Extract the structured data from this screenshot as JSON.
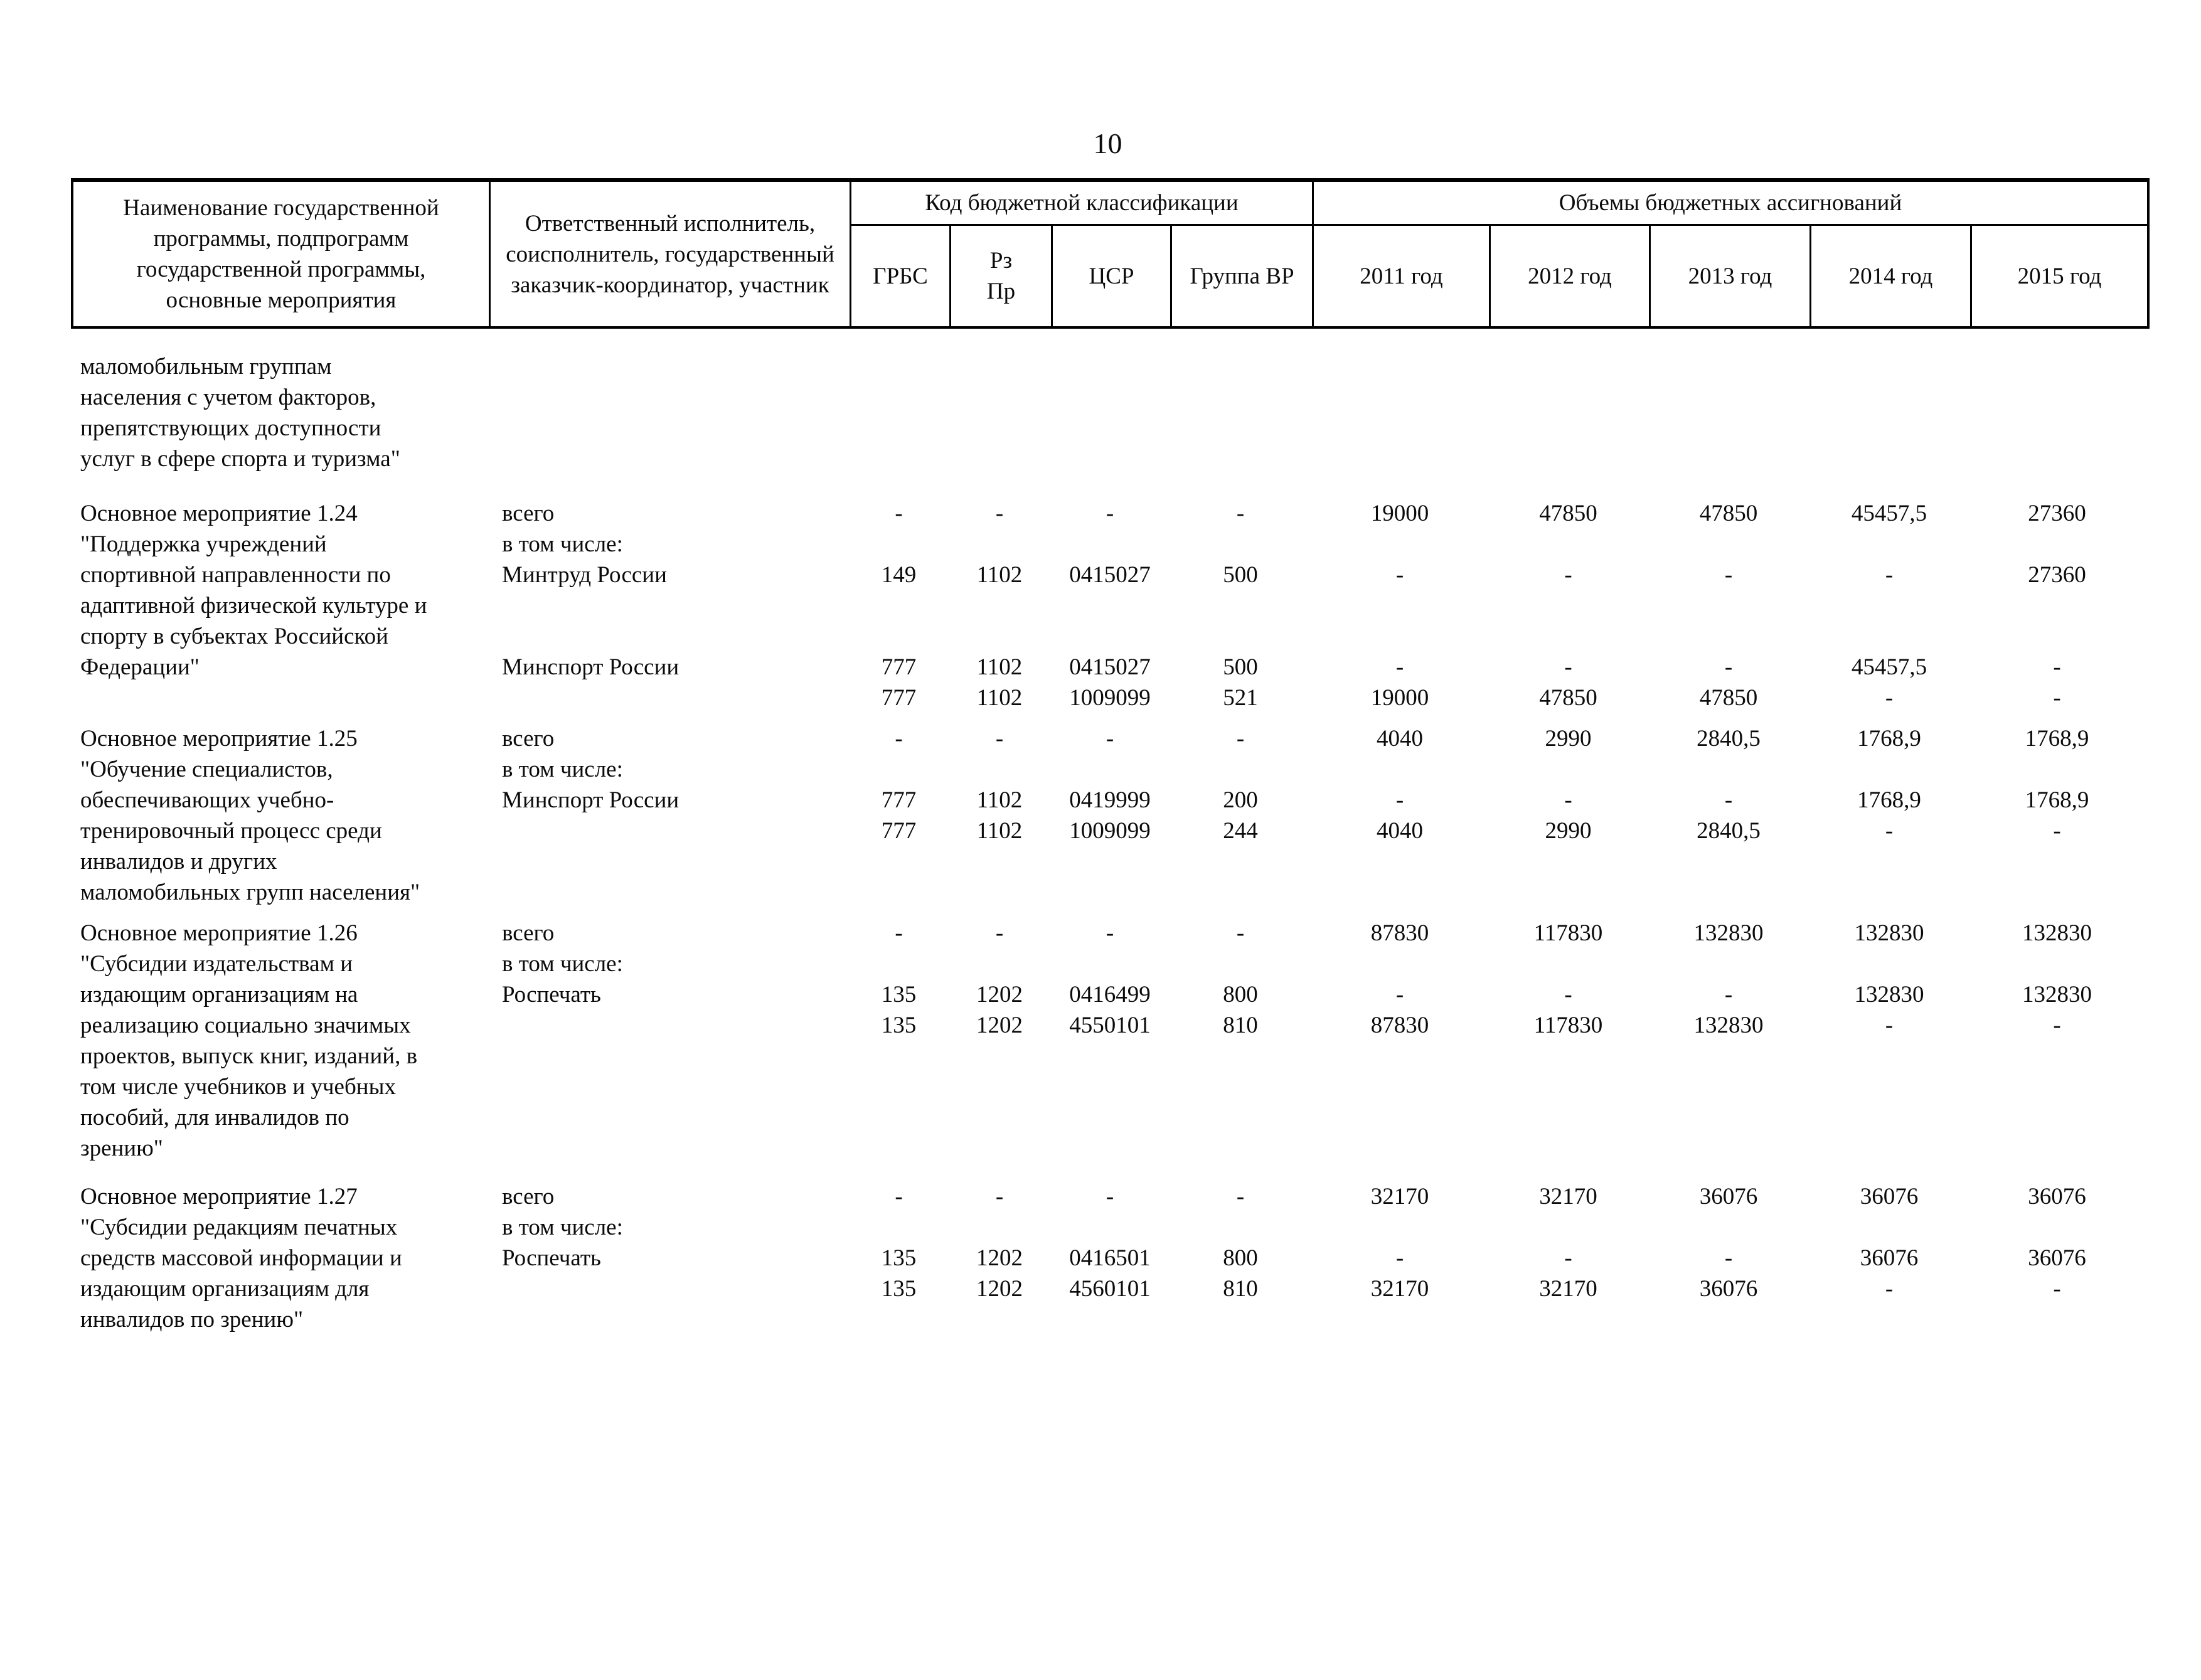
{
  "page": {
    "number": "10"
  },
  "table": {
    "header": {
      "col_name": "Наименование государственной программы, подпрограмм государственной программы, основные мероприятия",
      "col_executor": "Ответственный исполнитель, соисполнитель, государственный заказчик-координатор, участник",
      "group_codes": "Код бюджетной классификации",
      "group_volumes": "Объемы бюджетных ассигнований",
      "code_cols": [
        "ГРБС",
        "Рз\nПр",
        "ЦСР",
        "Группа ВР"
      ],
      "year_cols": [
        "2011 год",
        "2012 год",
        "2013 год",
        "2014 год",
        "2015 год"
      ]
    },
    "blocks": [
      {
        "name": "маломобильным группам\nнаселения с учетом факторов,\nпрепятствующих доступности\nуслуг в сфере спорта и туризма\"",
        "rows": []
      },
      {
        "name": "Основное мероприятие 1.24\n\"Поддержка учреждений\nспортивной направленности по\nадаптивной физической культуре и\nспорту в субъектах Российской\nФедерации\"",
        "rows": [
          {
            "line": 0,
            "executor": "всего",
            "grbs": "-",
            "rzpr": "-",
            "csr": "-",
            "vr": "-",
            "years": [
              "19000",
              "47850",
              "47850",
              "45457,5",
              "27360"
            ]
          },
          {
            "line": 1,
            "executor": "в том числе:"
          },
          {
            "line": 2,
            "executor": "Минтруд России",
            "grbs": "149",
            "rzpr": "1102",
            "csr": "0415027",
            "vr": "500",
            "years": [
              "-",
              "-",
              "-",
              "-",
              "27360"
            ]
          },
          {
            "line": 5,
            "executor": "Минспорт России",
            "grbs": "777",
            "rzpr": "1102",
            "csr": "0415027",
            "vr": "500",
            "years": [
              "-",
              "-",
              "-",
              "45457,5",
              "-"
            ]
          },
          {
            "line": 6,
            "executor": "",
            "grbs": "777",
            "rzpr": "1102",
            "csr": "1009099",
            "vr": "521",
            "years": [
              "19000",
              "47850",
              "47850",
              "-",
              "-"
            ]
          }
        ]
      },
      {
        "name": "Основное мероприятие 1.25\n\"Обучение специалистов,\nобеспечивающих учебно-\nтренировочный процесс среди\nинвалидов и других\nмаломобильных групп населения\"",
        "rows": [
          {
            "line": 0,
            "executor": "всего",
            "grbs": "-",
            "rzpr": "-",
            "csr": "-",
            "vr": "-",
            "years": [
              "4040",
              "2990",
              "2840,5",
              "1768,9",
              "1768,9"
            ]
          },
          {
            "line": 1,
            "executor": "в том числе:"
          },
          {
            "line": 2,
            "executor": "Минспорт России",
            "grbs": "777",
            "rzpr": "1102",
            "csr": "0419999",
            "vr": "200",
            "years": [
              "-",
              "-",
              "-",
              "1768,9",
              "1768,9"
            ]
          },
          {
            "line": 3,
            "executor": "",
            "grbs": "777",
            "rzpr": "1102",
            "csr": "1009099",
            "vr": "244",
            "years": [
              "4040",
              "2990",
              "2840,5",
              "-",
              "-"
            ]
          }
        ]
      },
      {
        "name": "Основное мероприятие 1.26\n\"Субсидии издательствам и\nиздающим организациям на\nреализацию социально значимых\nпроектов, выпуск книг, изданий, в\nтом числе учебников и учебных\nпособий, для инвалидов по\nзрению\"",
        "rows": [
          {
            "line": 0,
            "executor": "всего",
            "grbs": "-",
            "rzpr": "-",
            "csr": "-",
            "vr": "-",
            "years": [
              "87830",
              "117830",
              "132830",
              "132830",
              "132830"
            ]
          },
          {
            "line": 1,
            "executor": "в том числе:"
          },
          {
            "line": 2,
            "executor": "Роспечать",
            "grbs": "135",
            "rzpr": "1202",
            "csr": "0416499",
            "vr": "800",
            "years": [
              "-",
              "-",
              "-",
              "132830",
              "132830"
            ]
          },
          {
            "line": 3,
            "executor": "",
            "grbs": "135",
            "rzpr": "1202",
            "csr": "4550101",
            "vr": "810",
            "years": [
              "87830",
              "117830",
              "132830",
              "-",
              "-"
            ]
          }
        ]
      },
      {
        "name": "Основное мероприятие 1.27\n\"Субсидии редакциям печатных\nсредств массовой информации и\nиздающим организациям для\nинвалидов по зрению\"",
        "rows": [
          {
            "line": 0,
            "executor": "всего",
            "grbs": "-",
            "rzpr": "-",
            "csr": "-",
            "vr": "-",
            "years": [
              "32170",
              "32170",
              "36076",
              "36076",
              "36076"
            ]
          },
          {
            "line": 1,
            "executor": "в том числе:"
          },
          {
            "line": 2,
            "executor": "Роспечать",
            "grbs": "135",
            "rzpr": "1202",
            "csr": "0416501",
            "vr": "800",
            "years": [
              "-",
              "-",
              "-",
              "36076",
              "36076"
            ]
          },
          {
            "line": 3,
            "executor": "",
            "grbs": "135",
            "rzpr": "1202",
            "csr": "4560101",
            "vr": "810",
            "years": [
              "32170",
              "32170",
              "36076",
              "-",
              "-"
            ]
          }
        ]
      }
    ]
  }
}
